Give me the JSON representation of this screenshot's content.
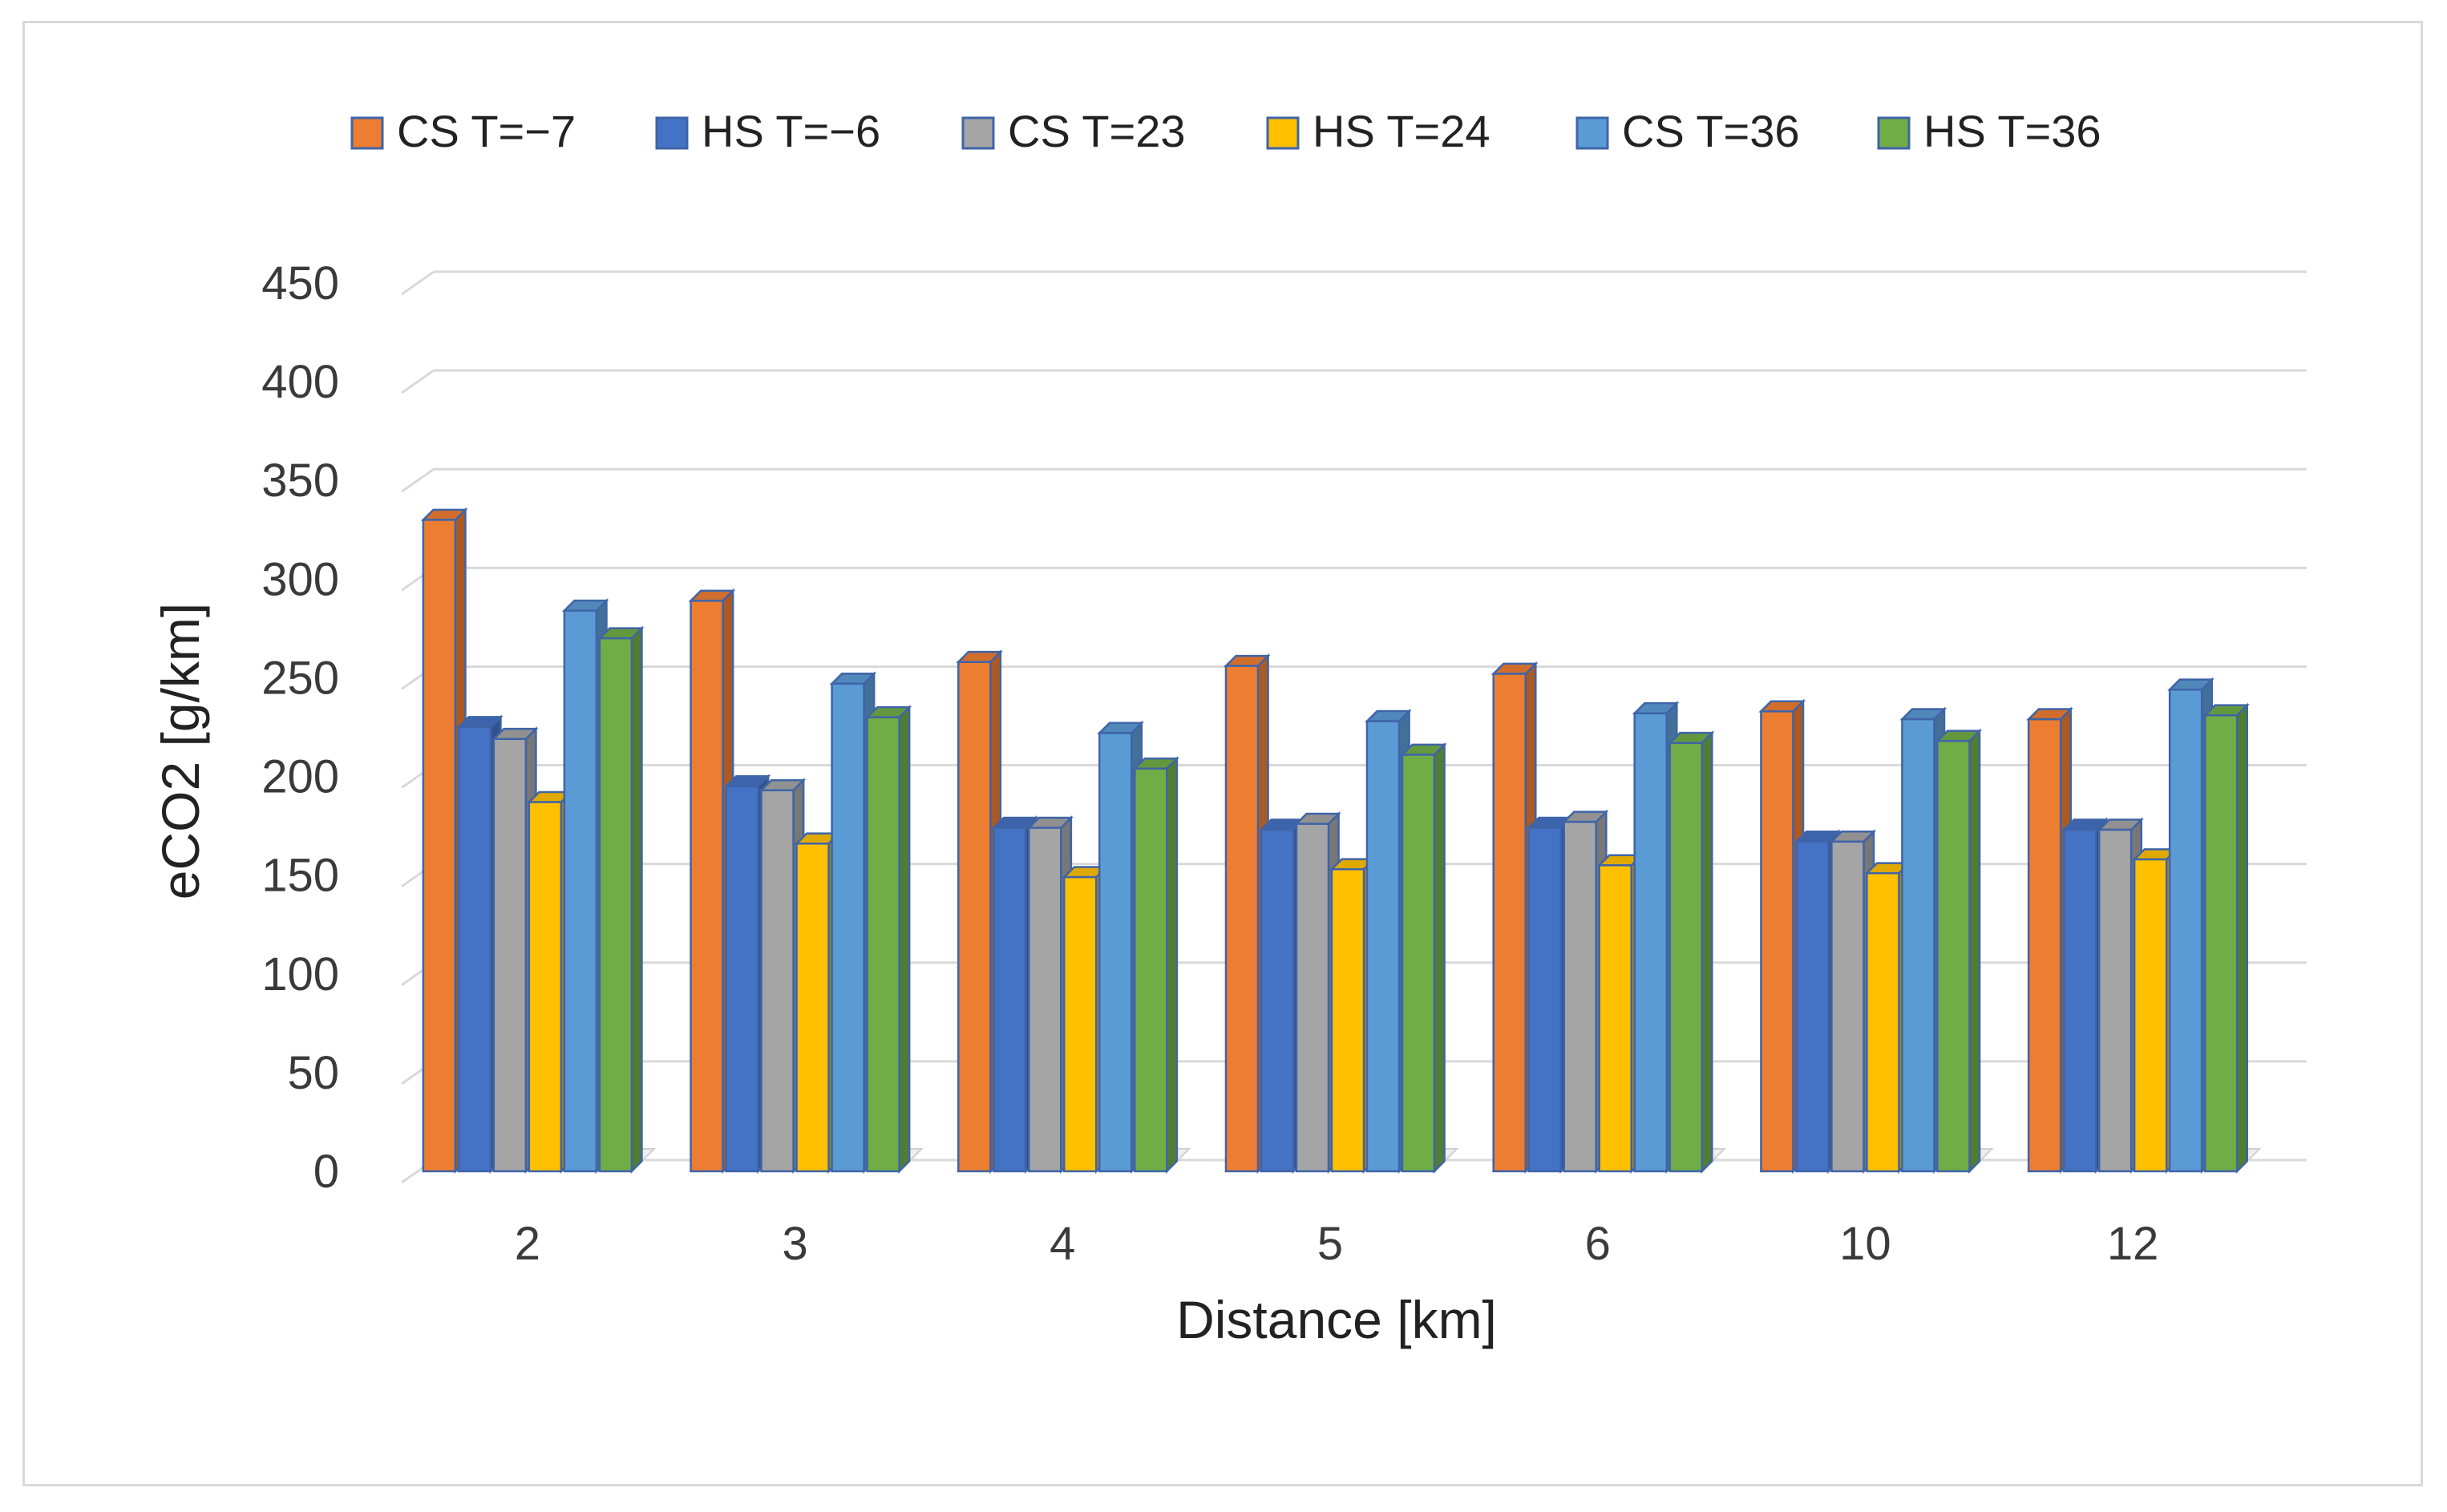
{
  "chart_data": {
    "type": "bar",
    "title": "",
    "xlabel": "Distance [km]",
    "ylabel": "eCO2 [g/km]",
    "categories": [
      "2",
      "3",
      "4",
      "5",
      "6",
      "10",
      "12"
    ],
    "ylim": [
      0,
      450
    ],
    "yticks": [
      0,
      50,
      100,
      150,
      200,
      250,
      300,
      350,
      400,
      450
    ],
    "grid": true,
    "legend_position": "top",
    "style": "3d-clustered-column",
    "series": [
      {
        "name": "CS T=−7",
        "color": "#ED7D31",
        "values": [
          330,
          289,
          258,
          256,
          252,
          233,
          229
        ]
      },
      {
        "name": "HS T=−6",
        "color": "#4472C4",
        "values": [
          225,
          195,
          174,
          173,
          174,
          167,
          173
        ]
      },
      {
        "name": "CS T=23",
        "color": "#A5A5A5",
        "values": [
          219,
          193,
          174,
          176,
          177,
          167,
          173
        ]
      },
      {
        "name": "HS T=24",
        "color": "#FFC000",
        "values": [
          187,
          166,
          149,
          153,
          155,
          151,
          158
        ]
      },
      {
        "name": "CS T=36",
        "color": "#5B9BD5",
        "values": [
          284,
          247,
          222,
          228,
          232,
          229,
          244
        ]
      },
      {
        "name": "HS T=36",
        "color": "#70AD47",
        "values": [
          270,
          230,
          204,
          211,
          217,
          218,
          231
        ]
      }
    ]
  }
}
